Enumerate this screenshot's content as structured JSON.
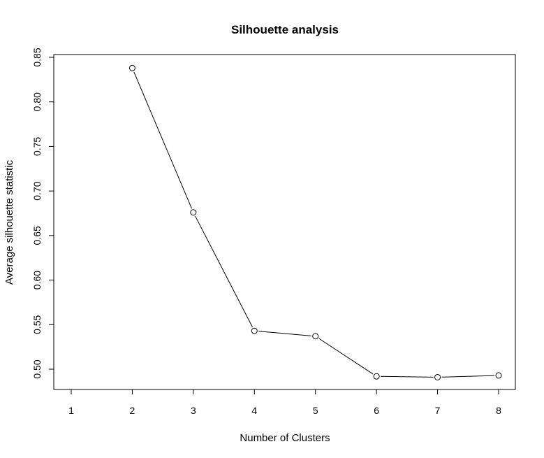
{
  "chart_data": {
    "type": "line",
    "title": "Silhouette analysis",
    "xlabel": "Number of Clusters",
    "ylabel": "Average silhouette statistic",
    "x": [
      2,
      3,
      4,
      5,
      6,
      7,
      8
    ],
    "y": [
      0.838,
      0.676,
      0.543,
      0.537,
      0.492,
      0.491,
      0.493
    ],
    "xlim": [
      1,
      8
    ],
    "ylim": [
      0.48,
      0.855
    ],
    "x_ticks": [
      1,
      2,
      3,
      4,
      5,
      6,
      7,
      8
    ],
    "x_tick_labels": [
      "1",
      "2",
      "3",
      "4",
      "5",
      "6",
      "7",
      "8"
    ],
    "y_ticks": [
      0.5,
      0.55,
      0.6,
      0.65,
      0.7,
      0.75,
      0.8,
      0.85
    ],
    "y_tick_labels": [
      "0.50",
      "0.55",
      "0.60",
      "0.65",
      "0.70",
      "0.75",
      "0.80",
      "0.85"
    ],
    "marker": "open-circle",
    "grid": false,
    "legend": "none",
    "colors": {
      "line": "#000000",
      "marker_fill": "#ffffff",
      "frame": "#000000"
    }
  }
}
